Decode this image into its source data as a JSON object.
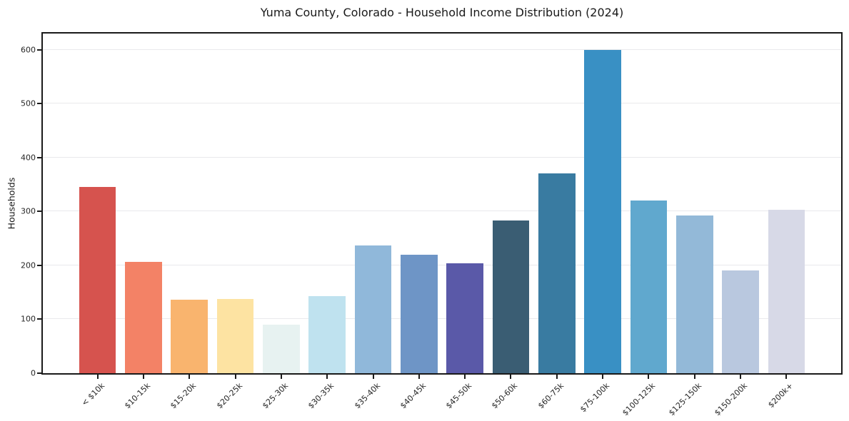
{
  "title": "Yuma County, Colorado - Household Income Distribution (2024)",
  "chart_data": {
    "type": "bar",
    "title": "Yuma County, Colorado - Household Income Distribution (2024)",
    "xlabel": "",
    "ylabel": "Households",
    "categories": [
      "< $10k",
      "$10-15k",
      "$15-20k",
      "$20-25k",
      "$25-30k",
      "$30-35k",
      "$35-40k",
      "$40-45k",
      "$45-50k",
      "$50-60k",
      "$60-75k",
      "$75-100k",
      "$100-125k",
      "$125-150k",
      "$150-200k",
      "$200k+"
    ],
    "values": [
      345,
      207,
      136,
      138,
      90,
      143,
      237,
      220,
      204,
      283,
      370,
      599,
      320,
      293,
      190,
      303
    ],
    "bar_colors": [
      "#d6534e",
      "#f38266",
      "#f9b46e",
      "#fde3a2",
      "#e7f2f1",
      "#bfe2ef",
      "#90b8da",
      "#6e95c6",
      "#5a59a8",
      "#3a5d73",
      "#397ba1",
      "#3990c4",
      "#60a8ce",
      "#93b9d8",
      "#b9c8df",
      "#d7d9e7"
    ],
    "yticks": [
      0,
      100,
      200,
      300,
      400,
      500,
      600
    ],
    "ylim": [
      0,
      630
    ],
    "x_tick_rotation": 45,
    "grid": "horizontal",
    "gridline_color": "#e9e9ec",
    "spine_color": "#1a1a1a",
    "background_color": "#ffffff",
    "legend": "none"
  }
}
